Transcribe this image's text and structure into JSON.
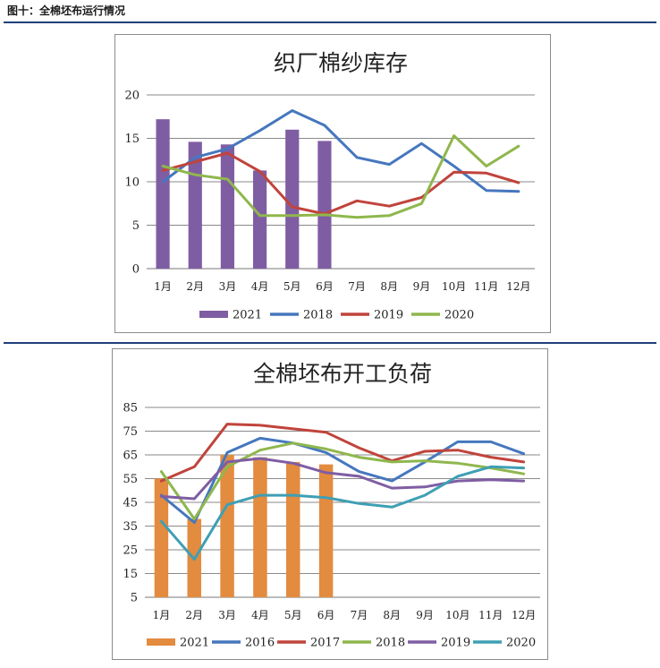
{
  "figure_title": "图十：全棉坯布运行情况",
  "chart_data": [
    {
      "type": "bar+line",
      "title": "织厂棉纱库存",
      "categories": [
        "1月",
        "2月",
        "3月",
        "4月",
        "5月",
        "6月",
        "7月",
        "8月",
        "9月",
        "10月",
        "11月",
        "12月"
      ],
      "ylim": [
        0,
        20
      ],
      "yticks": [
        0,
        5,
        10,
        15,
        20
      ],
      "grid": true,
      "legend_position": "bottom",
      "bar_series": {
        "name": "2021",
        "color": "#7f5da3",
        "values": [
          17.2,
          14.6,
          14.3,
          11.3,
          16.0,
          14.7
        ]
      },
      "series": [
        {
          "name": "2018",
          "color": "#4677be",
          "values": [
            10.0,
            12.8,
            13.8,
            15.9,
            18.2,
            16.5,
            12.8,
            12.0,
            14.4,
            11.8,
            9.0,
            8.9
          ]
        },
        {
          "name": "2019",
          "color": "#c0443c",
          "values": [
            11.3,
            12.3,
            13.3,
            11.2,
            7.1,
            6.3,
            7.8,
            7.2,
            8.2,
            11.1,
            11.0,
            9.9
          ]
        },
        {
          "name": "2020",
          "color": "#8fb74d",
          "values": [
            11.8,
            10.8,
            10.3,
            6.1,
            6.1,
            6.2,
            5.9,
            6.1,
            7.5,
            15.3,
            11.8,
            14.1
          ]
        }
      ]
    },
    {
      "type": "bar+line",
      "title": "全棉坯布开工负荷",
      "categories": [
        "1月",
        "2月",
        "3月",
        "4月",
        "5月",
        "6月",
        "7月",
        "8月",
        "9月",
        "10月",
        "11月",
        "12月"
      ],
      "ylim": [
        5,
        85
      ],
      "yticks": [
        5,
        15,
        25,
        35,
        45,
        55,
        65,
        75,
        85
      ],
      "grid": true,
      "legend_position": "bottom",
      "bar_series": {
        "name": "2021",
        "color": "#e38b3f",
        "values": [
          55,
          38,
          65,
          64,
          62,
          61
        ]
      },
      "series": [
        {
          "name": "2016",
          "color": "#4677be",
          "values": [
            48,
            36.5,
            66,
            72,
            70,
            66,
            58,
            54,
            62,
            70.5,
            70.5,
            65.5
          ]
        },
        {
          "name": "2017",
          "color": "#c0443c",
          "values": [
            54,
            60,
            78,
            77.5,
            76,
            74.5,
            68,
            62.5,
            66.5,
            67,
            64,
            62
          ]
        },
        {
          "name": "2018",
          "color": "#8fb74d",
          "values": [
            58,
            38,
            60,
            67,
            70,
            67.5,
            64,
            62,
            62.5,
            61.5,
            59.5,
            57
          ]
        },
        {
          "name": "2019",
          "color": "#7f5da3",
          "values": [
            47.5,
            46.5,
            62,
            63.5,
            61.5,
            57.5,
            56,
            51,
            51.5,
            54,
            54.5,
            54
          ]
        },
        {
          "name": "2020",
          "color": "#3f9fb4",
          "values": [
            37,
            21,
            44,
            48,
            48,
            47,
            44.5,
            43,
            48,
            56,
            60,
            59.5
          ]
        }
      ]
    }
  ]
}
